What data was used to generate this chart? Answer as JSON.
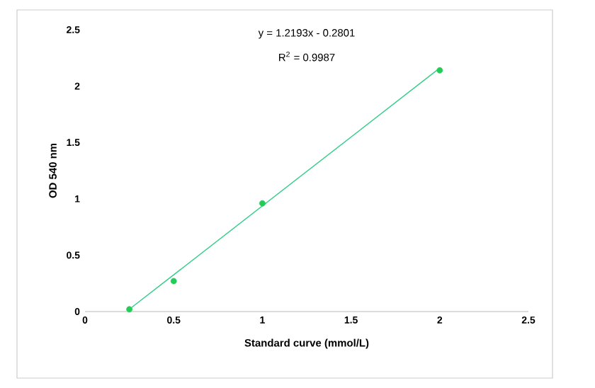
{
  "chart_data": {
    "type": "scatter",
    "xlabel": "Standard curve (mmol/L)",
    "ylabel": "OD 540 nm",
    "annotations": [
      "y = 1.2193x - 0.2801",
      "R$^{2}$ = 0.9987"
    ],
    "xlim": [
      0,
      2.5
    ],
    "ylim": [
      0,
      2.5
    ],
    "xticks": [
      0,
      0.5,
      1,
      1.5,
      2,
      2.5
    ],
    "yticks": [
      0,
      0.5,
      1,
      1.5,
      2,
      2.5
    ],
    "grid": false,
    "series": [
      {
        "type": "line",
        "color": "#33cc88",
        "marker": "none",
        "x": [
          0.25,
          2
        ],
        "values": [
          0.02,
          2.16
        ]
      },
      {
        "color": "#22cc55",
        "marker": "circle",
        "x": [
          0.25,
          0.5,
          1,
          2
        ],
        "values": [
          0.02,
          0.27,
          0.96,
          2.14
        ]
      }
    ]
  }
}
